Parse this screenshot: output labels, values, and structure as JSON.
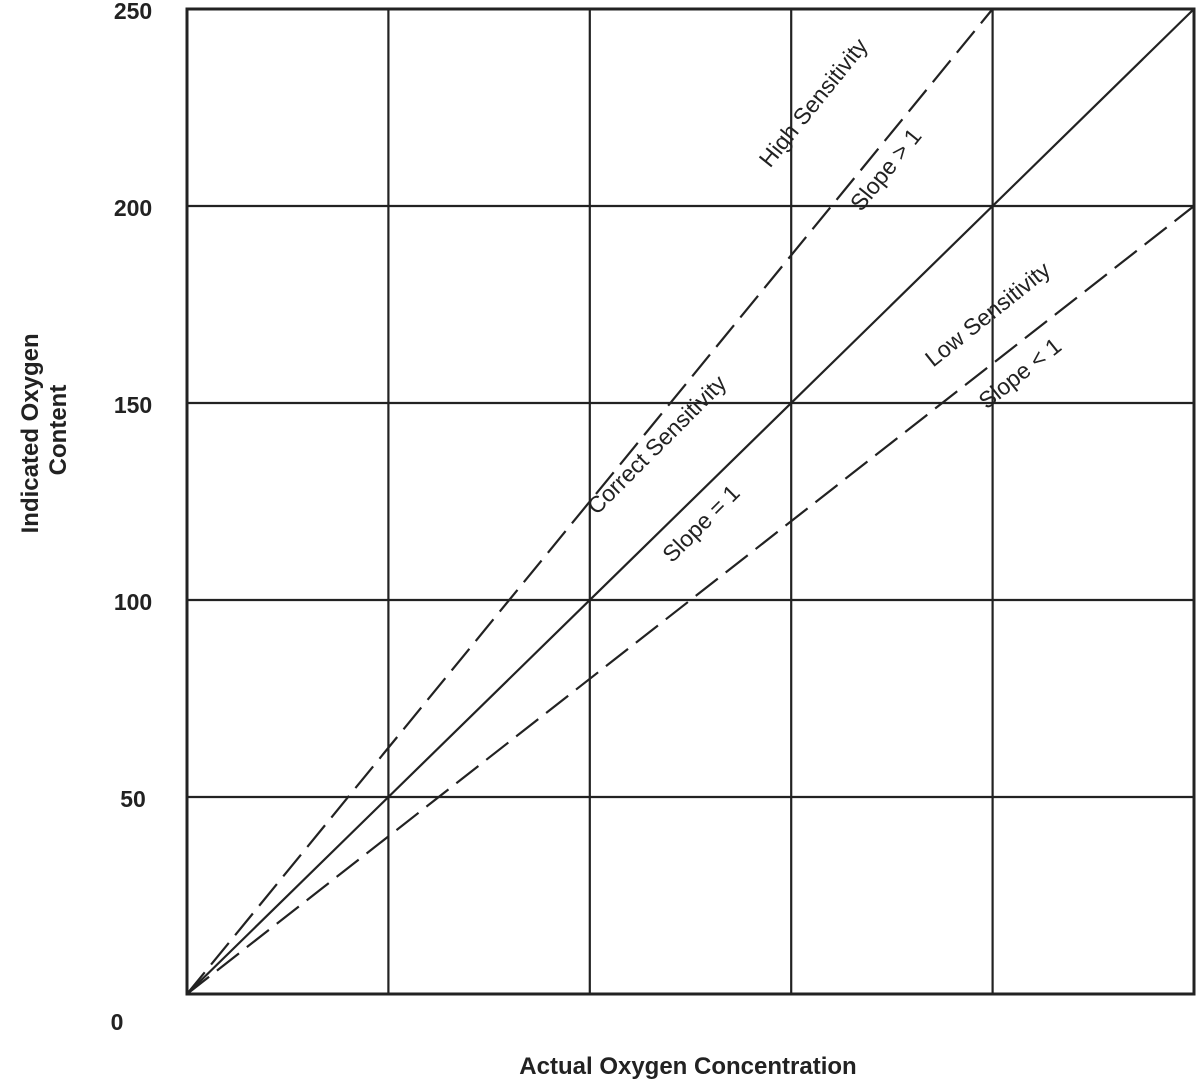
{
  "chart_data": {
    "type": "line",
    "xlabel": "Actual Oxygen Concentration",
    "ylabel": "Indicated Oxygen Content",
    "xlim": [
      0,
      250
    ],
    "ylim": [
      0,
      250
    ],
    "x_gridlines": [
      50,
      100,
      150,
      200
    ],
    "y_ticks": [
      0,
      50,
      100,
      150,
      200,
      250
    ],
    "y_tick_labels": [
      "0",
      "50",
      "100",
      "150",
      "200",
      "250"
    ],
    "grid": true,
    "series": [
      {
        "style": "dashed",
        "x": [
          0,
          200
        ],
        "y": [
          0,
          250
        ]
      },
      {
        "style": "solid",
        "x": [
          0,
          250
        ],
        "y": [
          0,
          250
        ]
      },
      {
        "style": "dashed",
        "x": [
          0,
          250
        ],
        "y": [
          0,
          200
        ]
      }
    ],
    "annotations": [
      {
        "text": "High Sensitivity",
        "x": 157,
        "y": 225
      },
      {
        "text": "Slope  > 1",
        "x": 175,
        "y": 208
      },
      {
        "text": "Correct Sensitivity",
        "x": 118,
        "y": 138
      },
      {
        "text": "Slope  = 1",
        "x": 129,
        "y": 118
      },
      {
        "text": "Low Sensitivity",
        "x": 200,
        "y": 171
      },
      {
        "text": "Slope  < 1",
        "x": 208,
        "y": 156
      }
    ]
  }
}
